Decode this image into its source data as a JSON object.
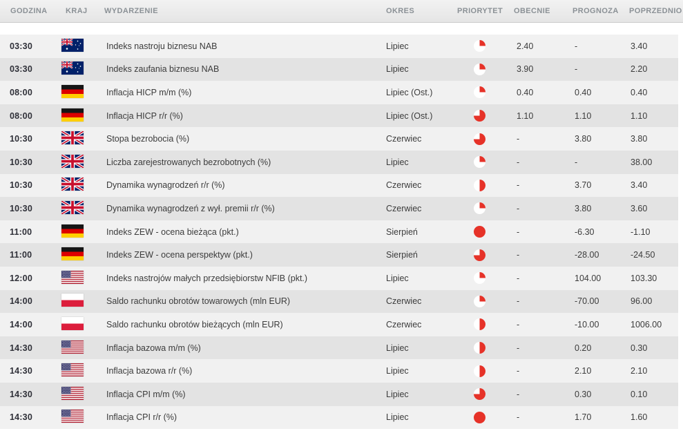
{
  "columns": {
    "time": "GODZINA",
    "country": "KRAJ",
    "event": "WYDARZENIE",
    "period": "OKRES",
    "priority": "PRIORYTET",
    "current": "OBECNIE",
    "forecast": "PROGNOZA",
    "previous": "POPRZEDNIO"
  },
  "colors": {
    "accent_red": "#e63228",
    "header_text": "#8b9196",
    "row_light": "#f1f1f1",
    "row_dark": "#e3e3e3"
  },
  "icons": {
    "priority": "pie-icon (red fill = importance: 0.25, 0.5, 0.75, 1)",
    "flags": [
      "flag-au-icon",
      "flag-de-icon",
      "flag-gb-icon",
      "flag-us-icon",
      "flag-pl-icon"
    ]
  },
  "rows": [
    {
      "time": "03:30",
      "country": "au",
      "event": "Indeks nastroju biznesu NAB",
      "period": "Lipiec",
      "priority": 0.25,
      "current": "2.40",
      "forecast": "-",
      "previous": "3.40"
    },
    {
      "time": "03:30",
      "country": "au",
      "event": "Indeks zaufania biznesu NAB",
      "period": "Lipiec",
      "priority": 0.25,
      "current": "3.90",
      "forecast": "-",
      "previous": "2.20"
    },
    {
      "time": "08:00",
      "country": "de",
      "event": "Inflacja HICP m/m (%)",
      "period": "Lipiec (Ost.)",
      "priority": 0.25,
      "current": "0.40",
      "forecast": "0.40",
      "previous": "0.40"
    },
    {
      "time": "08:00",
      "country": "de",
      "event": "Inflacja HICP r/r (%)",
      "period": "Lipiec (Ost.)",
      "priority": 0.75,
      "current": "1.10",
      "forecast": "1.10",
      "previous": "1.10"
    },
    {
      "time": "10:30",
      "country": "gb",
      "event": "Stopa bezrobocia (%)",
      "period": "Czerwiec",
      "priority": 0.75,
      "current": "-",
      "forecast": "3.80",
      "previous": "3.80"
    },
    {
      "time": "10:30",
      "country": "gb",
      "event": "Liczba zarejestrowanych bezrobotnych (%)",
      "period": "Lipiec",
      "priority": 0.25,
      "current": "-",
      "forecast": "-",
      "previous": "38.00"
    },
    {
      "time": "10:30",
      "country": "gb",
      "event": "Dynamika wynagrodzeń r/r (%)",
      "period": "Czerwiec",
      "priority": 0.5,
      "current": "-",
      "forecast": "3.70",
      "previous": "3.40"
    },
    {
      "time": "10:30",
      "country": "gb",
      "event": "Dynamika wynagrodzeń z wył. premii r/r (%)",
      "period": "Czerwiec",
      "priority": 0.25,
      "current": "-",
      "forecast": "3.80",
      "previous": "3.60"
    },
    {
      "time": "11:00",
      "country": "de",
      "event": "Indeks ZEW - ocena bieżąca (pkt.)",
      "period": "Sierpień",
      "priority": 1,
      "current": "-",
      "forecast": "-6.30",
      "previous": "-1.10"
    },
    {
      "time": "11:00",
      "country": "de",
      "event": "Indeks ZEW - ocena perspektyw (pkt.)",
      "period": "Sierpień",
      "priority": 0.75,
      "current": "-",
      "forecast": "-28.00",
      "previous": "-24.50"
    },
    {
      "time": "12:00",
      "country": "us",
      "event": "Indeks nastrojów małych przedsiębiorstw NFIB (pkt.)",
      "period": "Lipiec",
      "priority": 0.25,
      "current": "-",
      "forecast": "104.00",
      "previous": "103.30"
    },
    {
      "time": "14:00",
      "country": "pl",
      "event": "Saldo rachunku obrotów towarowych (mln EUR)",
      "period": "Czerwiec",
      "priority": 0.25,
      "current": "-",
      "forecast": "-70.00",
      "previous": "96.00"
    },
    {
      "time": "14:00",
      "country": "pl",
      "event": "Saldo rachunku obrotów bieżących (mln EUR)",
      "period": "Czerwiec",
      "priority": 0.5,
      "current": "-",
      "forecast": "-10.00",
      "previous": "1006.00"
    },
    {
      "time": "14:30",
      "country": "us",
      "event": "Inflacja bazowa m/m (%)",
      "period": "Lipiec",
      "priority": 0.5,
      "current": "-",
      "forecast": "0.20",
      "previous": "0.30"
    },
    {
      "time": "14:30",
      "country": "us",
      "event": "Inflacja bazowa r/r (%)",
      "period": "Lipiec",
      "priority": 0.5,
      "current": "-",
      "forecast": "2.10",
      "previous": "2.10"
    },
    {
      "time": "14:30",
      "country": "us",
      "event": "Inflacja CPI m/m (%)",
      "period": "Lipiec",
      "priority": 0.75,
      "current": "-",
      "forecast": "0.30",
      "previous": "0.10"
    },
    {
      "time": "14:30",
      "country": "us",
      "event": "Inflacja CPI r/r (%)",
      "period": "Lipiec",
      "priority": 1,
      "current": "-",
      "forecast": "1.70",
      "previous": "1.60"
    }
  ]
}
